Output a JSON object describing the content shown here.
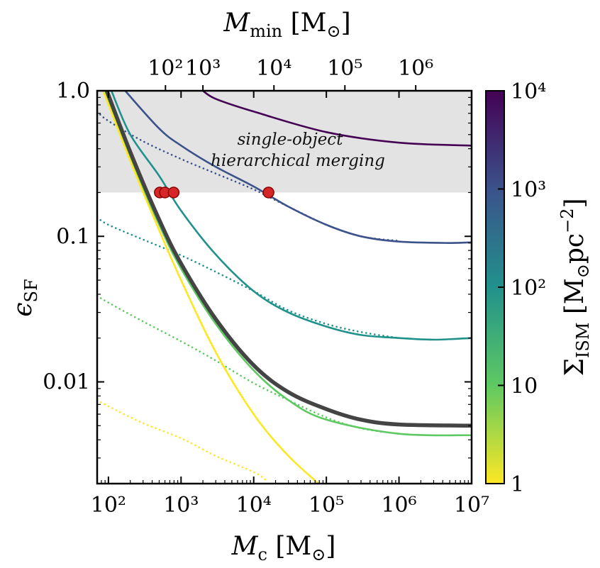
{
  "chart_data": {
    "type": "line",
    "xlabel": "M_c [M_⊙]",
    "ylabel": "ε_SF",
    "top_xlabel": "M_min [M_⊙]",
    "colorbar_label": "Σ_ISM [M_⊙pc^-2]",
    "x_scale": "log",
    "y_scale": "log",
    "xlim": [
      70,
      10000000
    ],
    "ylim": [
      0.002,
      1.0
    ],
    "x_ticks": [
      {
        "value": 100,
        "label": "10²"
      },
      {
        "value": 1000,
        "label": "10³"
      },
      {
        "value": 10000,
        "label": "10⁴"
      },
      {
        "value": 100000,
        "label": "10⁵"
      },
      {
        "value": 1000000,
        "label": "10⁶"
      },
      {
        "value": 10000000,
        "label": "10⁷"
      }
    ],
    "y_ticks": [
      {
        "value": 1.0,
        "label": "1.0"
      },
      {
        "value": 0.1,
        "label": "0.1"
      },
      {
        "value": 0.01,
        "label": "0.01"
      }
    ],
    "top_ticks": [
      {
        "value": 100,
        "mc": 610,
        "label": "10²"
      },
      {
        "value": 1000,
        "mc": 2000,
        "label": "10³"
      },
      {
        "value": 10000,
        "mc": 19000,
        "label": "10⁴"
      },
      {
        "value": 100000,
        "mc": 180000,
        "label": "10⁵"
      },
      {
        "value": 1000000,
        "mc": 1700000,
        "label": "10⁶"
      }
    ],
    "colorbar": {
      "range": [
        1,
        10000
      ],
      "ticks": [
        {
          "value": 1,
          "label": "1"
        },
        {
          "value": 10,
          "label": "10"
        },
        {
          "value": 100,
          "label": "10²"
        },
        {
          "value": 1000,
          "label": "10³"
        },
        {
          "value": 10000,
          "label": "10⁴"
        }
      ],
      "colors": [
        "#fde725",
        "#5ec962",
        "#21918c",
        "#3b528b",
        "#440154"
      ]
    },
    "shaded_region": {
      "y_min": 0.2,
      "y_max": 1.0,
      "color": "#e3e3e3",
      "label": "single-object hierarchical merging"
    },
    "series": [
      {
        "name": "Σ_ISM = 10⁴",
        "color": "#440154",
        "style": "solid",
        "points": [
          [
            2000,
            1.0
          ],
          [
            3000,
            0.88
          ],
          [
            10000,
            0.72
          ],
          [
            100000,
            0.52
          ],
          [
            1000000,
            0.44
          ],
          [
            10000000,
            0.42
          ]
        ]
      },
      {
        "name": "Σ_ISM = 10³",
        "color": "#3b528b",
        "style": "solid",
        "points": [
          [
            170,
            1.0
          ],
          [
            500,
            0.55
          ],
          [
            1000,
            0.42
          ],
          [
            3000,
            0.3
          ],
          [
            10000,
            0.22
          ],
          [
            30000,
            0.16
          ],
          [
            100000,
            0.12
          ],
          [
            300000,
            0.1
          ],
          [
            1000000,
            0.092
          ],
          [
            5000000,
            0.09
          ],
          [
            10000000,
            0.091
          ]
        ]
      },
      {
        "name": "Σ_ISM = 10³ (dotted)",
        "color": "#3b528b",
        "style": "dotted",
        "points": [
          [
            70,
            0.72
          ],
          [
            100,
            0.62
          ],
          [
            300,
            0.45
          ],
          [
            1000,
            0.34
          ],
          [
            3000,
            0.27
          ],
          [
            10000,
            0.21
          ],
          [
            30000,
            0.16
          ],
          [
            100000,
            0.12
          ],
          [
            300000,
            0.1
          ],
          [
            1000000,
            0.093
          ]
        ]
      },
      {
        "name": "Σ_ISM = 10²",
        "color": "#21918c",
        "style": "solid",
        "points": [
          [
            110,
            1.0
          ],
          [
            200,
            0.5
          ],
          [
            500,
            0.26
          ],
          [
            1000,
            0.15
          ],
          [
            3000,
            0.075
          ],
          [
            10000,
            0.042
          ],
          [
            30000,
            0.03
          ],
          [
            100000,
            0.024
          ],
          [
            300000,
            0.021
          ],
          [
            1000000,
            0.02
          ],
          [
            3000000,
            0.0195
          ],
          [
            10000000,
            0.02
          ]
        ]
      },
      {
        "name": "Σ_ISM = 10² (dotted)",
        "color": "#21918c",
        "style": "dotted",
        "points": [
          [
            70,
            0.135
          ],
          [
            100,
            0.12
          ],
          [
            300,
            0.095
          ],
          [
            1000,
            0.074
          ],
          [
            3000,
            0.057
          ],
          [
            10000,
            0.042
          ],
          [
            30000,
            0.031
          ],
          [
            100000,
            0.025
          ],
          [
            300000,
            0.022
          ],
          [
            1000000,
            0.02
          ]
        ]
      },
      {
        "name": "Σ_ISM = 10",
        "color": "#5ec962",
        "style": "solid",
        "points": [
          [
            90,
            1.0
          ],
          [
            200,
            0.35
          ],
          [
            500,
            0.12
          ],
          [
            1000,
            0.06
          ],
          [
            3000,
            0.025
          ],
          [
            10000,
            0.012
          ],
          [
            30000,
            0.0075
          ],
          [
            100000,
            0.0055
          ],
          [
            1000000,
            0.0044
          ],
          [
            10000000,
            0.0043
          ]
        ]
      },
      {
        "name": "Σ_ISM = 10 (dotted)",
        "color": "#5ec962",
        "style": "dotted",
        "points": [
          [
            70,
            0.039
          ],
          [
            100,
            0.035
          ],
          [
            300,
            0.026
          ],
          [
            1000,
            0.019
          ],
          [
            3000,
            0.014
          ],
          [
            10000,
            0.0098
          ],
          [
            30000,
            0.0075
          ],
          [
            100000,
            0.0057
          ],
          [
            300000,
            0.0048
          ],
          [
            1000000,
            0.0044
          ]
        ]
      },
      {
        "name": "Σ_ISM = 1",
        "color": "#fde725",
        "style": "solid",
        "points": [
          [
            85,
            1.0
          ],
          [
            200,
            0.33
          ],
          [
            500,
            0.11
          ],
          [
            1000,
            0.05
          ],
          [
            3000,
            0.016
          ],
          [
            10000,
            0.006
          ],
          [
            30000,
            0.0031
          ],
          [
            100000,
            0.0018
          ]
        ]
      },
      {
        "name": "Σ_ISM = 1 (dotted)",
        "color": "#fde725",
        "style": "dotted",
        "points": [
          [
            70,
            0.0075
          ],
          [
            100,
            0.0068
          ],
          [
            300,
            0.0052
          ],
          [
            1000,
            0.0041
          ],
          [
            3000,
            0.0031
          ],
          [
            10000,
            0.0024
          ],
          [
            15000,
            0.0021
          ]
        ]
      },
      {
        "name": "reference (thick)",
        "color": "#444444",
        "style": "thick",
        "points": [
          [
            95,
            1.0
          ],
          [
            200,
            0.38
          ],
          [
            500,
            0.13
          ],
          [
            1000,
            0.065
          ],
          [
            3000,
            0.027
          ],
          [
            10000,
            0.013
          ],
          [
            30000,
            0.0085
          ],
          [
            100000,
            0.0065
          ],
          [
            300000,
            0.0055
          ],
          [
            1000000,
            0.0051
          ],
          [
            10000000,
            0.005
          ]
        ]
      }
    ],
    "markers": [
      {
        "x": 510,
        "y": 0.2,
        "color": "#d62728"
      },
      {
        "x": 600,
        "y": 0.2,
        "color": "#d62728"
      },
      {
        "x": 790,
        "y": 0.2,
        "color": "#d62728"
      },
      {
        "x": 16000,
        "y": 0.2,
        "color": "#d62728"
      }
    ]
  }
}
